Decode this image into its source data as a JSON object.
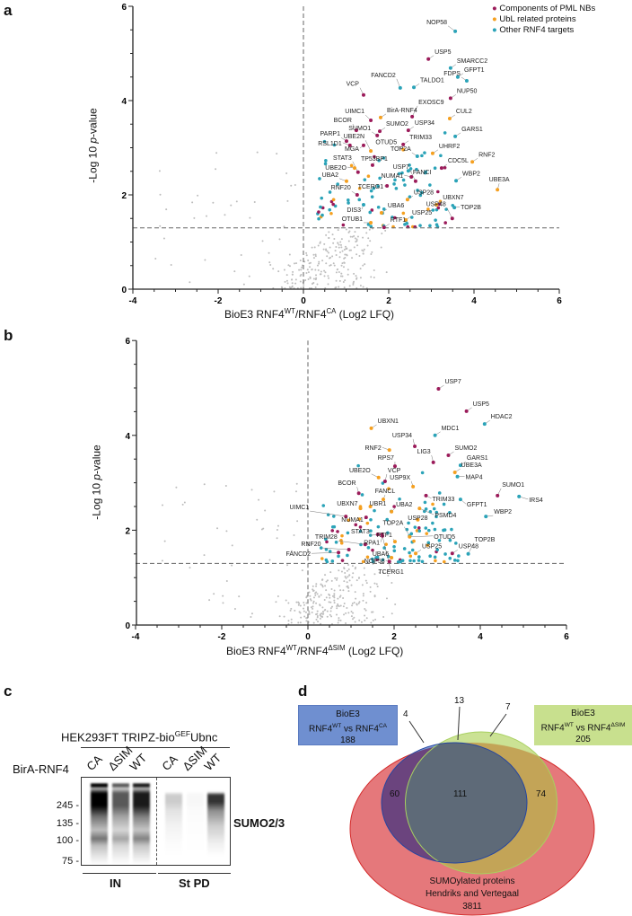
{
  "panels": {
    "a": "a",
    "b": "b",
    "c": "c",
    "d": "d"
  },
  "colors": {
    "pml": "#9b1b5a",
    "ubl": "#f5a020",
    "other": "#2ba3b8",
    "background": "#bdbdbd"
  },
  "chart_data": [
    {
      "id": "a",
      "type": "scatter",
      "title": "",
      "xlabel_main": "BioE3 RNF4",
      "xlabel_sup1": "WT",
      "xlabel_mid": "/RNF4",
      "xlabel_sup2": "CA",
      "xlabel_tail": " (Log2 LFQ)",
      "ylabel_pre": "-Log 10 ",
      "ylabel_italic": "p",
      "ylabel_post": "-value",
      "xlim": [
        -4,
        6
      ],
      "ylim": [
        0,
        6
      ],
      "xticks": [
        "-4",
        "-2",
        "0",
        "2",
        "4",
        "6"
      ],
      "xtick_values": [
        -4,
        -2,
        0,
        2,
        4,
        6
      ],
      "yticks": [
        "0",
        "2",
        "4",
        "6"
      ],
      "ytick_values": [
        0,
        2,
        4,
        6
      ],
      "threshold_y": 1.3,
      "threshold_x": 0,
      "legend": [
        {
          "label": "Components of PML NBs",
          "category": "pml"
        },
        {
          "label": "UbL related proteins",
          "category": "ubl"
        },
        {
          "label": "Other RNF4 targets",
          "category": "other"
        }
      ],
      "legend_position": "top-right",
      "points": [
        {
          "label": "NOP58",
          "x": 3.56,
          "y": 5.47,
          "category": "other"
        },
        {
          "label": "USP5",
          "x": 2.93,
          "y": 4.88,
          "category": "pml"
        },
        {
          "label": "SMARCC2",
          "x": 3.45,
          "y": 4.69,
          "category": "other"
        },
        {
          "label": "GFPT1",
          "x": 3.62,
          "y": 4.5,
          "category": "other"
        },
        {
          "label": "FDPS",
          "x": 3.83,
          "y": 4.42,
          "category": "other"
        },
        {
          "label": "FANCD2",
          "x": 2.27,
          "y": 4.27,
          "category": "other"
        },
        {
          "label": "TALDO1",
          "x": 2.59,
          "y": 4.28,
          "category": "other"
        },
        {
          "label": "VCP",
          "x": 1.41,
          "y": 4.12,
          "category": "pml"
        },
        {
          "label": "NUP50",
          "x": 3.45,
          "y": 4.05,
          "category": "pml"
        },
        {
          "label": "BirA-RNF4",
          "x": 1.81,
          "y": 3.64,
          "category": "ubl"
        },
        {
          "label": "UIMC1",
          "x": 1.58,
          "y": 3.58,
          "category": "pml"
        },
        {
          "label": "EXOSC9",
          "x": 2.55,
          "y": 3.66,
          "category": "pml"
        },
        {
          "label": "CUL2",
          "x": 3.43,
          "y": 3.62,
          "category": "ubl"
        },
        {
          "label": "BCOR",
          "x": 1.24,
          "y": 3.37,
          "category": "pml"
        },
        {
          "label": "SUMO2",
          "x": 1.79,
          "y": 3.35,
          "category": "pml"
        },
        {
          "label": "USP34",
          "x": 2.46,
          "y": 3.37,
          "category": "pml"
        },
        {
          "label": "SUMO1",
          "x": 1.73,
          "y": 3.26,
          "category": "pml"
        },
        {
          "label": "GARS1",
          "x": 3.56,
          "y": 3.24,
          "category": "other"
        },
        {
          "label": "PARP1",
          "x": 1.01,
          "y": 3.14,
          "category": "pml"
        },
        {
          "label": "TRIM33",
          "x": 2.34,
          "y": 3.07,
          "category": "pml"
        },
        {
          "label": "RSL1D1",
          "x": 1.09,
          "y": 3.05,
          "category": "pml"
        },
        {
          "label": "OTUD5",
          "x": 2.34,
          "y": 2.96,
          "category": "ubl"
        },
        {
          "label": "MGA",
          "x": 1.41,
          "y": 3.05,
          "category": "pml"
        },
        {
          "label": "UBE2N",
          "x": 1.58,
          "y": 2.93,
          "category": "ubl"
        },
        {
          "label": "UHRF2",
          "x": 3.03,
          "y": 2.88,
          "category": "ubl"
        },
        {
          "label": "TOP2A",
          "x": 2.67,
          "y": 2.82,
          "category": "other"
        },
        {
          "label": "RNF2",
          "x": 3.96,
          "y": 2.7,
          "category": "ubl"
        },
        {
          "label": "TP53BP1",
          "x": 1.62,
          "y": 2.63,
          "category": "pml"
        },
        {
          "label": "CDC5L",
          "x": 3.24,
          "y": 2.57,
          "category": "pml"
        },
        {
          "label": "UBE2O",
          "x": 1.2,
          "y": 2.57,
          "category": "ubl"
        },
        {
          "label": "FANCI",
          "x": 2.46,
          "y": 2.51,
          "category": "other"
        },
        {
          "label": "STAT3",
          "x": 1.28,
          "y": 2.48,
          "category": "pml"
        },
        {
          "label": "NUMA1",
          "x": 2.53,
          "y": 2.38,
          "category": "pml"
        },
        {
          "label": "WBP2",
          "x": 3.58,
          "y": 2.3,
          "category": "other"
        },
        {
          "label": "UBA2",
          "x": 1.01,
          "y": 2.29,
          "category": "ubl"
        },
        {
          "label": "USP7",
          "x": 2.63,
          "y": 2.29,
          "category": "pml"
        },
        {
          "label": "TCERG1",
          "x": 1.96,
          "y": 2.19,
          "category": "pml"
        },
        {
          "label": "UBE3A",
          "x": 4.55,
          "y": 2.11,
          "category": "ubl"
        },
        {
          "label": "RNF20",
          "x": 1.26,
          "y": 2.0,
          "category": "pml"
        },
        {
          "label": "UBXN7",
          "x": 3.12,
          "y": 1.79,
          "category": "ubl"
        },
        {
          "label": "USP28",
          "x": 2.44,
          "y": 1.9,
          "category": "ubl"
        },
        {
          "label": "TOP2B",
          "x": 3.54,
          "y": 1.73,
          "category": "other"
        },
        {
          "label": "DIS3",
          "x": 1.41,
          "y": 1.79,
          "category": "other"
        },
        {
          "label": "USP25",
          "x": 2.4,
          "y": 1.47,
          "category": "ubl"
        },
        {
          "label": "USP48",
          "x": 3.49,
          "y": 1.5,
          "category": "pml"
        },
        {
          "label": "UBA6",
          "x": 1.83,
          "y": 1.62,
          "category": "ubl"
        },
        {
          "label": "RTF1",
          "x": 1.89,
          "y": 1.31,
          "category": "pml"
        },
        {
          "label": "OTUB1",
          "x": 1.58,
          "y": 1.41,
          "category": "ubl"
        }
      ]
    },
    {
      "id": "b",
      "type": "scatter",
      "title": "",
      "xlabel_main": "BioE3 RNF4",
      "xlabel_sup1": "WT",
      "xlabel_mid": "/RNF4",
      "xlabel_sup2": "ΔSIM",
      "xlabel_tail": " (Log2 LFQ)",
      "ylabel_pre": "-Log 10 ",
      "ylabel_italic": "p",
      "ylabel_post": "-value",
      "xlim": [
        -4,
        6
      ],
      "ylim": [
        0,
        6
      ],
      "xticks": [
        "-4",
        "-2",
        "0",
        "2",
        "4",
        "6"
      ],
      "xtick_values": [
        -4,
        -2,
        0,
        2,
        4,
        6
      ],
      "yticks": [
        "0",
        "2",
        "4",
        "6"
      ],
      "ytick_values": [
        0,
        2,
        4,
        6
      ],
      "threshold_y": 1.3,
      "threshold_x": 0,
      "points": [
        {
          "label": "USP7",
          "x": 3.03,
          "y": 4.98,
          "category": "pml"
        },
        {
          "label": "USP5",
          "x": 3.68,
          "y": 4.51,
          "category": "pml"
        },
        {
          "label": "HDAC2",
          "x": 4.1,
          "y": 4.24,
          "category": "other"
        },
        {
          "label": "UBXN1",
          "x": 1.47,
          "y": 4.15,
          "category": "ubl"
        },
        {
          "label": "MDC1",
          "x": 2.95,
          "y": 4.0,
          "category": "other"
        },
        {
          "label": "USP34",
          "x": 2.48,
          "y": 3.77,
          "category": "pml"
        },
        {
          "label": "RNF2",
          "x": 1.89,
          "y": 3.69,
          "category": "ubl"
        },
        {
          "label": "SUMO2",
          "x": 3.26,
          "y": 3.58,
          "category": "pml"
        },
        {
          "label": "LIG3",
          "x": 2.91,
          "y": 3.43,
          "category": "pml"
        },
        {
          "label": "RPS7",
          "x": 2.02,
          "y": 3.35,
          "category": "pml"
        },
        {
          "label": "GARS1",
          "x": 3.54,
          "y": 3.37,
          "category": "other"
        },
        {
          "label": "UBE3A",
          "x": 3.41,
          "y": 3.22,
          "category": "ubl"
        },
        {
          "label": "MAP4",
          "x": 3.47,
          "y": 3.13,
          "category": "other"
        },
        {
          "label": "UBE2O",
          "x": 1.64,
          "y": 3.11,
          "category": "ubl"
        },
        {
          "label": "VCP",
          "x": 1.79,
          "y": 3.03,
          "category": "pml"
        },
        {
          "label": "USP9X",
          "x": 2.44,
          "y": 2.92,
          "category": "ubl"
        },
        {
          "label": "BCOR",
          "x": 1.18,
          "y": 2.78,
          "category": "pml"
        },
        {
          "label": "SUMO1",
          "x": 4.4,
          "y": 2.73,
          "category": "pml"
        },
        {
          "label": "IRS4",
          "x": 4.9,
          "y": 2.71,
          "category": "other"
        },
        {
          "label": "FANCL",
          "x": 1.75,
          "y": 2.65,
          "category": "ubl"
        },
        {
          "label": "TRIM33",
          "x": 2.74,
          "y": 2.73,
          "category": "pml"
        },
        {
          "label": "GFPT1",
          "x": 3.54,
          "y": 2.65,
          "category": "other"
        },
        {
          "label": "UBXN7",
          "x": 1.22,
          "y": 2.46,
          "category": "ubl"
        },
        {
          "label": "UBR1",
          "x": 1.45,
          "y": 2.5,
          "category": "ubl"
        },
        {
          "label": "UBA2",
          "x": 1.94,
          "y": 2.39,
          "category": "ubl"
        },
        {
          "label": "UIMC1",
          "x": 0.88,
          "y": 2.29,
          "category": "pml"
        },
        {
          "label": "WBP2",
          "x": 4.13,
          "y": 2.29,
          "category": "other"
        },
        {
          "label": "PSMD4",
          "x": 2.59,
          "y": 2.46,
          "category": "ubl"
        },
        {
          "label": "NUMA1",
          "x": 1.35,
          "y": 2.27,
          "category": "pml"
        },
        {
          "label": "USP28",
          "x": 2.55,
          "y": 2.22,
          "category": "ubl"
        },
        {
          "label": "RPA1",
          "x": 1.73,
          "y": 1.88,
          "category": "pml"
        },
        {
          "label": "TOP2A",
          "x": 2.36,
          "y": 1.88,
          "category": "other"
        },
        {
          "label": "STAT3",
          "x": 1.62,
          "y": 1.91,
          "category": "pml"
        },
        {
          "label": "TRIM28",
          "x": 1.33,
          "y": 1.7,
          "category": "pml"
        },
        {
          "label": "RTF1",
          "x": 2.02,
          "y": 1.76,
          "category": "ubl"
        },
        {
          "label": "OTUD5",
          "x": 2.36,
          "y": 1.86,
          "category": "ubl"
        },
        {
          "label": "RNF20",
          "x": 0.95,
          "y": 1.59,
          "category": "pml"
        },
        {
          "label": "FANCD2",
          "x": 0.71,
          "y": 1.53,
          "category": "pml"
        },
        {
          "label": "UBA6",
          "x": 1.94,
          "y": 1.42,
          "category": "ubl"
        },
        {
          "label": "NOP58",
          "x": 1.89,
          "y": 1.34,
          "category": "pml"
        },
        {
          "label": "TCERG1",
          "x": 1.72,
          "y": 1.91,
          "category": "pml"
        },
        {
          "label": "USP25",
          "x": 2.5,
          "y": 1.51,
          "category": "ubl"
        },
        {
          "label": "USP48",
          "x": 3.35,
          "y": 1.51,
          "category": "pml"
        },
        {
          "label": "TOP2B",
          "x": 3.72,
          "y": 1.5,
          "category": "other"
        }
      ]
    },
    {
      "id": "d",
      "type": "venn",
      "sets": [
        {
          "name_line1": "BioE3",
          "name_pre": "RNF4",
          "sup1": "WT",
          "name_mid": " vs RNF4",
          "sup2": "CA",
          "size": "188",
          "color": "#6f8fd0"
        },
        {
          "name_line1": "BioE3",
          "name_pre": "RNF4",
          "sup1": "WT",
          "name_mid": " vs RNF4",
          "sup2": "ΔSIM",
          "size": "205",
          "color": "#c8e08e"
        },
        {
          "name_line1": "SUMOylated proteins",
          "name_line2": "Hendriks and Vertegaal",
          "size": "3811",
          "color": "#e5787b"
        }
      ],
      "regions": {
        "ca_only": "4",
        "ca_wt_sim_only": "13",
        "sim_only": "7",
        "ca_sumo": "60",
        "all_three": "111",
        "sim_sumo": "74"
      }
    }
  ],
  "blot": {
    "cell_line_pre": "HEK293FT TRIPZ-bio",
    "cell_line_sup": "GEF",
    "cell_line_post": "Ubnc",
    "row_label": "BirA-RNF4",
    "lanes": [
      "CA",
      "ΔSIM",
      "WT",
      "CA",
      "ΔSIM",
      "WT"
    ],
    "markers": [
      "245 -",
      "135 -",
      "100 -",
      "75 -"
    ],
    "antibody": "SUMO2/3",
    "groups": [
      "IN",
      "St PD"
    ],
    "lane_intensity": [
      1.0,
      0.65,
      0.9,
      0.2,
      0.03,
      0.8
    ]
  }
}
